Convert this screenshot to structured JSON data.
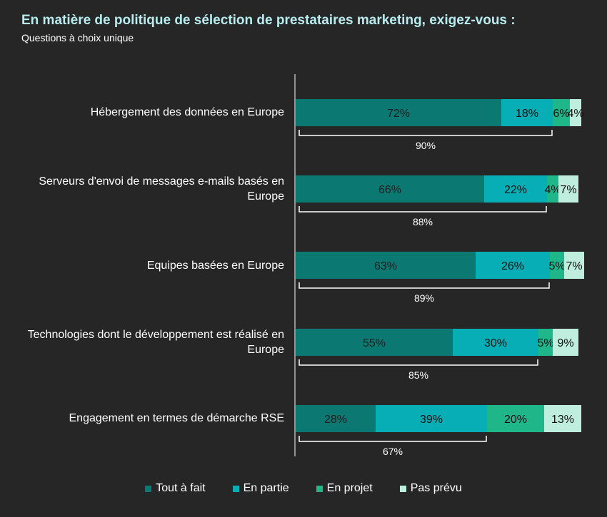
{
  "header": {
    "title": "En matière de politique de sélection de prestataires marketing, exigez-vous :",
    "subtitle": "Questions à choix unique"
  },
  "chart_data": {
    "type": "bar",
    "orientation": "horizontal",
    "stacked": true,
    "categories": [
      "Hébergement des données en Europe",
      "Serveurs d'envoi de messages e-mails basés en Europe",
      "Equipes basées en Europe",
      "Technologies dont le développement est réalisé en Europe",
      "Engagement en termes de démarche RSE"
    ],
    "series": [
      {
        "name": "Tout à fait",
        "color": "#0b7872",
        "values": [
          72,
          66,
          63,
          55,
          28
        ]
      },
      {
        "name": "En partie",
        "color": "#07aeb5",
        "values": [
          18,
          22,
          26,
          30,
          39
        ]
      },
      {
        "name": "En projet",
        "color": "#1fb68a",
        "values": [
          6,
          4,
          5,
          5,
          20
        ]
      },
      {
        "name": "Pas prévu",
        "color": "#bfeede",
        "values": [
          4,
          7,
          7,
          9,
          13
        ]
      }
    ],
    "bracket_totals": [
      90,
      88,
      89,
      85,
      67
    ],
    "unit": "%",
    "xlim": [
      0,
      100
    ],
    "legend_position": "bottom"
  }
}
